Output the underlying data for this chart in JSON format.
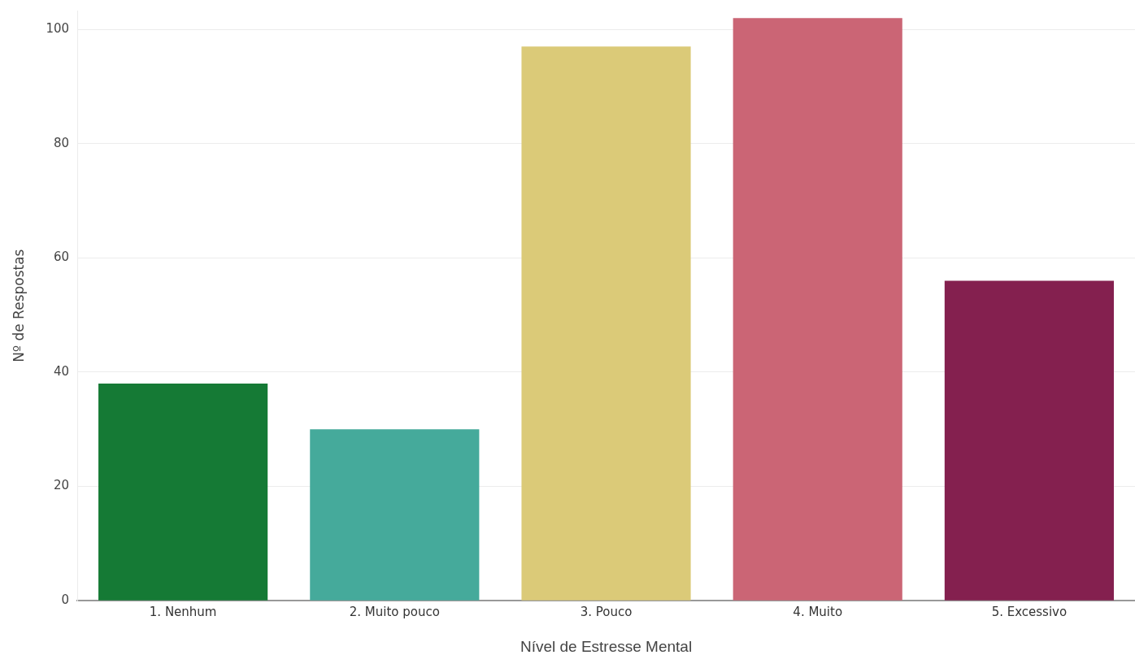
{
  "chart_data": {
    "type": "bar",
    "xlabel": "Nível de Estresse Mental",
    "ylabel": "Nº de Respostas",
    "categories": [
      "1. Nenhum",
      "2. Muito pouco",
      "3. Pouco",
      "4. Muito",
      "5. Excessivo"
    ],
    "values": [
      38,
      30,
      97,
      102,
      56
    ],
    "colors": [
      "#157a35",
      "#45aa9b",
      "#dbca78",
      "#cb6575",
      "#84204f"
    ],
    "ylim": [
      0,
      103.3
    ],
    "yticks": [
      0,
      20,
      40,
      60,
      80,
      100
    ],
    "grid": "y",
    "legend": false
  }
}
